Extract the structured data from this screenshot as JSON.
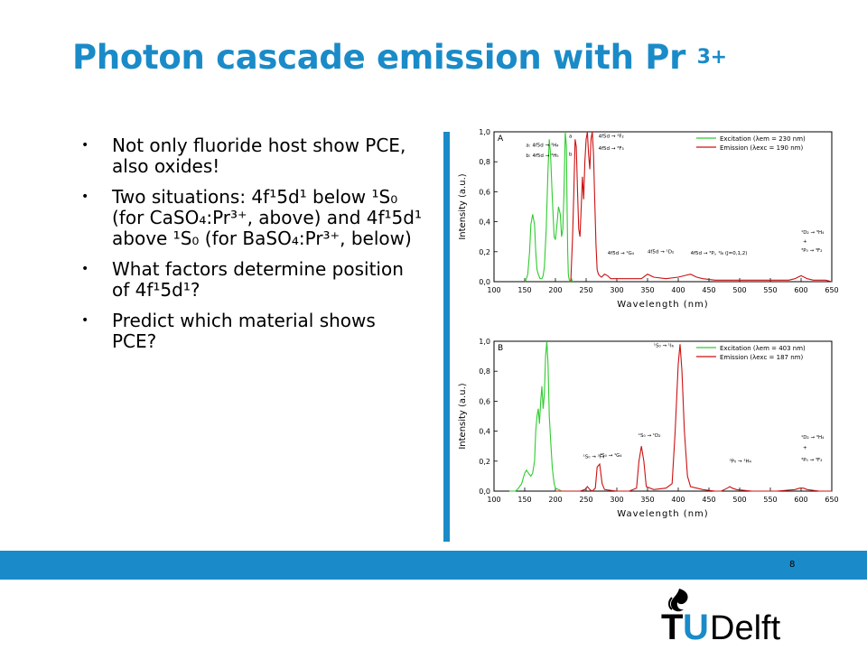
{
  "slide": {
    "title": "Photon cascade emission with Pr",
    "title_sup": "3+",
    "page_number": "8",
    "logo_text": "TUDelft"
  },
  "bullets": [
    "Not only fluoride host show PCE, also oxides!",
    "Two situations: 4f¹5d¹ below ¹S₀ (for CaSO₄:Pr³⁺, above) and 4f¹5d¹ above ¹S₀ (for BaSO₄:Pr³⁺, below)",
    "What factors determine position of 4f¹5d¹?",
    "Predict which material shows PCE?"
  ],
  "colors": {
    "accent": "#1a8bc8",
    "excitation": "#2ecc2e",
    "emission": "#cc1111"
  },
  "chart_data": [
    {
      "type": "line",
      "panel": "A",
      "xlabel": "Wavelength (nm)",
      "ylabel": "Intensity (a.u.)",
      "xlim": [
        100,
        650
      ],
      "ylim": [
        0.0,
        1.0
      ],
      "xticks": [
        100,
        150,
        200,
        250,
        300,
        350,
        400,
        450,
        500,
        550,
        600,
        650
      ],
      "yticks": [
        "0,0",
        "0,2",
        "0,4",
        "0,6",
        "0,8",
        "1,0"
      ],
      "legend": [
        "Excitation (λem = 230 nm)",
        "Emission (λexc = 190 nm)"
      ],
      "annotations": [
        {
          "text": "a: 4f5d → ³H₄",
          "x": 152,
          "y": 0.9
        },
        {
          "text": "b: 4f5d → ³H₅",
          "x": 152,
          "y": 0.83
        },
        {
          "text": "a",
          "x": 222,
          "y": 0.96
        },
        {
          "text": "b",
          "x": 222,
          "y": 0.84
        },
        {
          "text": "4f5d → ³F₂",
          "x": 270,
          "y": 0.96
        },
        {
          "text": "4f5d → ³F₃",
          "x": 270,
          "y": 0.88
        },
        {
          "text": "4f5d → ¹G₄",
          "x": 285,
          "y": 0.18
        },
        {
          "text": "4f5d → ¹D₂",
          "x": 350,
          "y": 0.19
        },
        {
          "text": "4f5d → ³Pⱼ, ¹I₆ (J=0,1,2)",
          "x": 420,
          "y": 0.18
        },
        {
          "text": "¹D₂ → ³H₄",
          "x": 600,
          "y": 0.32
        },
        {
          "text": "+",
          "x": 603,
          "y": 0.26
        },
        {
          "text": "³P₀ → ³F₂",
          "x": 600,
          "y": 0.2
        }
      ],
      "series": [
        {
          "name": "Excitation (λem = 230 nm)",
          "color": "#2ecc2e",
          "x": [
            150,
            152,
            155,
            158,
            160,
            163,
            166,
            168,
            170,
            172,
            175,
            178,
            180,
            182,
            185,
            188,
            190,
            192,
            195,
            198,
            200,
            203,
            205,
            208,
            210,
            212,
            214,
            215,
            216,
            218,
            219,
            220,
            221,
            222,
            224,
            226,
            228
          ],
          "y": [
            0.0,
            0.01,
            0.05,
            0.2,
            0.38,
            0.45,
            0.38,
            0.2,
            0.08,
            0.05,
            0.02,
            0.02,
            0.04,
            0.1,
            0.35,
            0.75,
            0.95,
            0.85,
            0.55,
            0.3,
            0.28,
            0.4,
            0.5,
            0.45,
            0.3,
            0.35,
            0.6,
            0.8,
            1.0,
            0.9,
            0.5,
            0.2,
            0.05,
            0.02,
            0.0,
            0.02,
            0.0
          ]
        },
        {
          "name": "Emission (λexc = 190 nm)",
          "color": "#cc1111",
          "x": [
            225,
            228,
            230,
            232,
            234,
            236,
            238,
            240,
            242,
            244,
            246,
            248,
            250,
            252,
            254,
            256,
            258,
            260,
            262,
            264,
            266,
            268,
            270,
            272,
            275,
            280,
            285,
            290,
            300,
            320,
            340,
            350,
            360,
            380,
            400,
            410,
            420,
            430,
            440,
            460,
            500,
            550,
            580,
            590,
            595,
            600,
            605,
            610,
            620,
            640,
            650
          ],
          "y": [
            0.0,
            0.3,
            0.6,
            0.95,
            0.9,
            0.6,
            0.35,
            0.3,
            0.5,
            0.7,
            0.55,
            0.8,
            0.95,
            1.0,
            0.85,
            0.75,
            0.95,
            1.0,
            0.85,
            0.55,
            0.25,
            0.08,
            0.05,
            0.04,
            0.03,
            0.05,
            0.04,
            0.02,
            0.02,
            0.02,
            0.02,
            0.05,
            0.03,
            0.02,
            0.03,
            0.04,
            0.05,
            0.03,
            0.02,
            0.01,
            0.01,
            0.01,
            0.01,
            0.02,
            0.03,
            0.04,
            0.03,
            0.02,
            0.01,
            0.01,
            0.0
          ]
        }
      ]
    },
    {
      "type": "line",
      "panel": "B",
      "xlabel": "Wavelength (nm)",
      "ylabel": "Intensity (a.u.)",
      "xlim": [
        100,
        650
      ],
      "ylim": [
        0.0,
        1.0
      ],
      "xticks": [
        100,
        150,
        200,
        250,
        300,
        350,
        400,
        450,
        500,
        550,
        600,
        650
      ],
      "yticks": [
        "0,0",
        "0,2",
        "0,4",
        "0,6",
        "0,8",
        "1,0"
      ],
      "legend": [
        "Excitation (λem = 403 nm)",
        "Emission (λexc = 187 nm)"
      ],
      "annotations": [
        {
          "text": "¹S₀ → ¹I₆",
          "x": 360,
          "y": 0.96
        },
        {
          "text": "¹S₀ → ¹D₂",
          "x": 335,
          "y": 0.36
        },
        {
          "text": "¹S₀ → ³F₄",
          "x": 245,
          "y": 0.22
        },
        {
          "text": "¹S₀ → ¹G₄",
          "x": 272,
          "y": 0.23
        },
        {
          "text": "³P₀ → ³H₄",
          "x": 483,
          "y": 0.19
        },
        {
          "text": "¹D₂ → ³H₄",
          "x": 600,
          "y": 0.35
        },
        {
          "text": "+",
          "x": 603,
          "y": 0.28
        },
        {
          "text": "³P₀ → ³F₂",
          "x": 600,
          "y": 0.2
        }
      ],
      "series": [
        {
          "name": "Excitation (λem = 403 nm)",
          "color": "#2ecc2e",
          "x": [
            125,
            130,
            135,
            140,
            145,
            150,
            153,
            156,
            160,
            163,
            166,
            168,
            170,
            172,
            174,
            176,
            178,
            180,
            182,
            184,
            186,
            188,
            190,
            192,
            195,
            198,
            200,
            205,
            210,
            215
          ],
          "y": [
            0.0,
            0.0,
            0.0,
            0.02,
            0.05,
            0.12,
            0.14,
            0.12,
            0.1,
            0.12,
            0.2,
            0.4,
            0.5,
            0.55,
            0.45,
            0.6,
            0.7,
            0.55,
            0.65,
            0.9,
            1.0,
            0.85,
            0.5,
            0.35,
            0.15,
            0.05,
            0.02,
            0.01,
            0.0,
            0.0
          ]
        },
        {
          "name": "Emission (λexc = 187 nm)",
          "color": "#cc1111",
          "x": [
            200,
            220,
            240,
            248,
            252,
            256,
            260,
            265,
            268,
            272,
            276,
            280,
            300,
            320,
            332,
            336,
            340,
            344,
            348,
            360,
            380,
            390,
            395,
            400,
            403,
            406,
            410,
            415,
            420,
            440,
            460,
            470,
            480,
            484,
            488,
            495,
            520,
            560,
            590,
            598,
            604,
            610,
            630,
            650
          ],
          "y": [
            0.0,
            0.0,
            0.0,
            0.01,
            0.03,
            0.01,
            0.0,
            0.02,
            0.16,
            0.18,
            0.05,
            0.01,
            0.0,
            0.0,
            0.02,
            0.2,
            0.3,
            0.2,
            0.03,
            0.01,
            0.02,
            0.05,
            0.4,
            0.85,
            0.98,
            0.8,
            0.4,
            0.1,
            0.03,
            0.01,
            0.0,
            0.0,
            0.02,
            0.03,
            0.02,
            0.01,
            0.0,
            0.0,
            0.01,
            0.02,
            0.02,
            0.01,
            0.0,
            0.0
          ]
        }
      ]
    }
  ]
}
